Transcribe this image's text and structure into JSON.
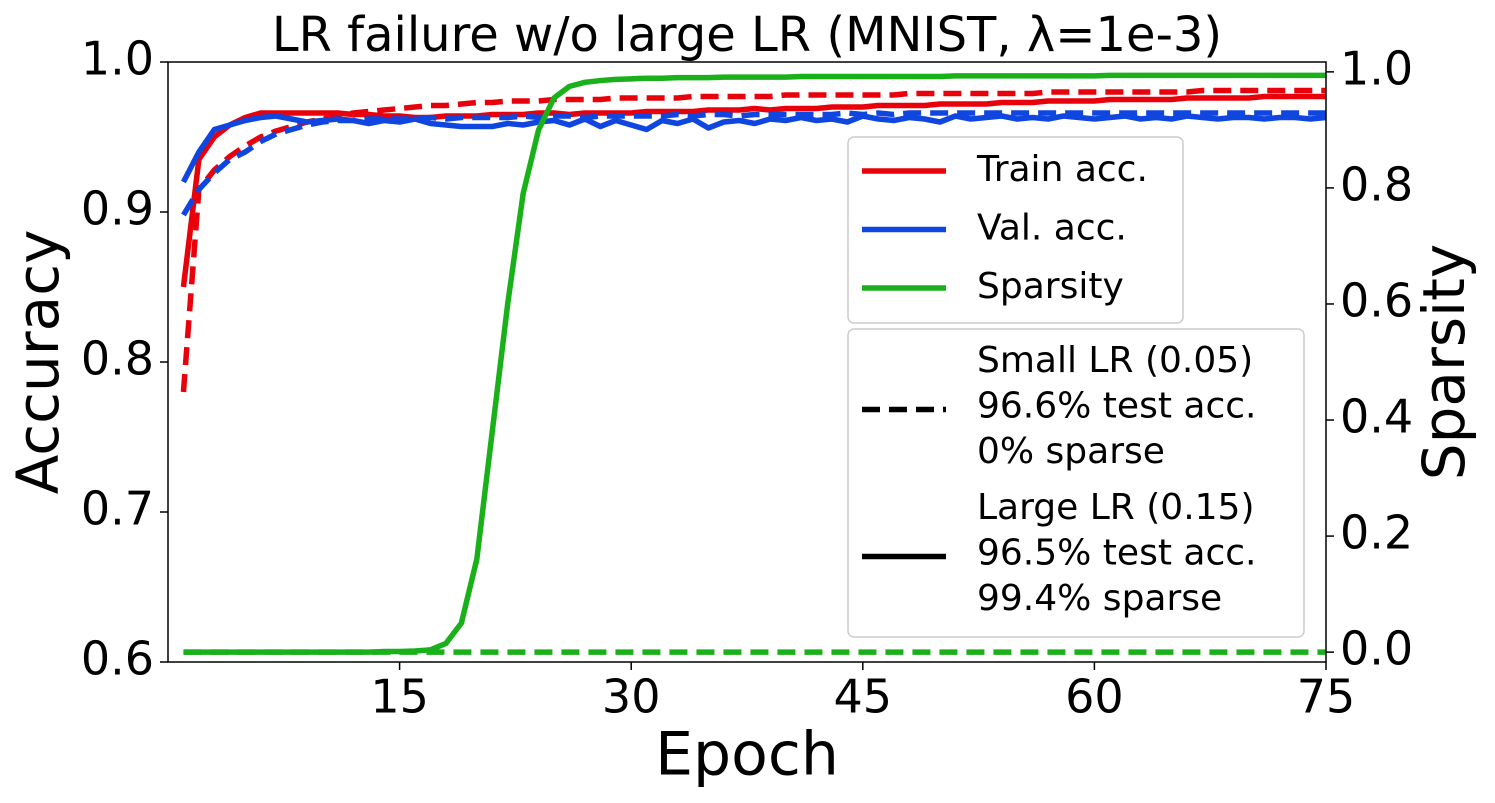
{
  "chart_data": {
    "type": "line",
    "title": "LR failure w/o large LR (MNIST, λ=1e-3)",
    "xlabel": "Epoch",
    "ylabel": "Accuracy",
    "y2label": "Sparsity",
    "x": [
      1,
      2,
      3,
      4,
      5,
      6,
      7,
      8,
      9,
      10,
      11,
      12,
      13,
      14,
      15,
      16,
      17,
      18,
      19,
      20,
      21,
      22,
      23,
      24,
      25,
      26,
      27,
      28,
      29,
      30,
      31,
      32,
      33,
      34,
      35,
      36,
      37,
      38,
      39,
      40,
      41,
      42,
      43,
      44,
      45,
      46,
      47,
      48,
      49,
      50,
      51,
      52,
      53,
      54,
      55,
      56,
      57,
      58,
      59,
      60,
      61,
      62,
      63,
      64,
      65,
      66,
      67,
      68,
      69,
      70,
      71,
      72,
      73,
      74,
      75
    ],
    "xlim": [
      0,
      75
    ],
    "xticks": [
      15,
      30,
      45,
      60,
      75
    ],
    "ylim": [
      0.6,
      1
    ],
    "yticks": [
      0.6,
      0.7,
      0.8,
      0.9,
      {
        "value": 1,
        "label": "1.0"
      }
    ],
    "y2lim": [
      -0.017,
      1.017
    ],
    "y2ticks": [
      {
        "value": 0,
        "label": "0.0"
      },
      0.2,
      0.4,
      0.6,
      0.8,
      {
        "value": 1,
        "label": "1.0"
      }
    ],
    "series": [
      {
        "name": "Train acc.",
        "color": "#e8000b",
        "dashed": true,
        "values": [
          0.78,
          0.915,
          0.928,
          0.937,
          0.944,
          0.95,
          0.954,
          0.957,
          0.96,
          0.962,
          0.964,
          0.966,
          0.967,
          0.968,
          0.969,
          0.97,
          0.971,
          0.971,
          0.972,
          0.973,
          0.973,
          0.974,
          0.974,
          0.974,
          0.975,
          0.975,
          0.975,
          0.975,
          0.976,
          0.976,
          0.976,
          0.976,
          0.976,
          0.977,
          0.977,
          0.977,
          0.977,
          0.977,
          0.977,
          0.978,
          0.978,
          0.978,
          0.978,
          0.978,
          0.978,
          0.978,
          0.978,
          0.979,
          0.979,
          0.979,
          0.979,
          0.979,
          0.979,
          0.979,
          0.979,
          0.979,
          0.98,
          0.98,
          0.98,
          0.98,
          0.98,
          0.98,
          0.98,
          0.98,
          0.98,
          0.98,
          0.981,
          0.981,
          0.981,
          0.981,
          0.981,
          0.981,
          0.981,
          0.981,
          0.981
        ]
      },
      {
        "name": "Train acc.",
        "color": "#e8000b",
        "dashed": false,
        "values": [
          0.85,
          0.935,
          0.95,
          0.958,
          0.963,
          0.966,
          0.966,
          0.966,
          0.966,
          0.966,
          0.966,
          0.965,
          0.965,
          0.964,
          0.964,
          0.963,
          0.963,
          0.964,
          0.964,
          0.964,
          0.965,
          0.965,
          0.965,
          0.966,
          0.966,
          0.965,
          0.966,
          0.966,
          0.966,
          0.966,
          0.967,
          0.967,
          0.967,
          0.967,
          0.968,
          0.968,
          0.968,
          0.969,
          0.968,
          0.969,
          0.969,
          0.969,
          0.97,
          0.97,
          0.97,
          0.971,
          0.971,
          0.971,
          0.971,
          0.972,
          0.972,
          0.972,
          0.972,
          0.973,
          0.973,
          0.973,
          0.974,
          0.974,
          0.974,
          0.974,
          0.975,
          0.975,
          0.975,
          0.975,
          0.975,
          0.976,
          0.976,
          0.976,
          0.976,
          0.976,
          0.977,
          0.977,
          0.977,
          0.977,
          0.977
        ]
      },
      {
        "name": "Val. acc.",
        "color": "#1046e0",
        "dashed": true,
        "values": [
          0.898,
          0.915,
          0.926,
          0.935,
          0.94,
          0.947,
          0.952,
          0.955,
          0.958,
          0.96,
          0.961,
          0.961,
          0.962,
          0.962,
          0.962,
          0.962,
          0.963,
          0.962,
          0.963,
          0.963,
          0.963,
          0.963,
          0.964,
          0.963,
          0.964,
          0.964,
          0.963,
          0.964,
          0.964,
          0.964,
          0.964,
          0.964,
          0.965,
          0.964,
          0.965,
          0.965,
          0.964,
          0.965,
          0.965,
          0.965,
          0.965,
          0.965,
          0.965,
          0.966,
          0.965,
          0.966,
          0.965,
          0.966,
          0.966,
          0.966,
          0.966,
          0.966,
          0.966,
          0.966,
          0.966,
          0.966,
          0.966,
          0.966,
          0.966,
          0.966,
          0.966,
          0.966,
          0.966,
          0.966,
          0.966,
          0.966,
          0.966,
          0.966,
          0.966,
          0.966,
          0.966,
          0.966,
          0.966,
          0.966,
          0.966
        ]
      },
      {
        "name": "Val. acc.",
        "color": "#1046e0",
        "dashed": false,
        "values": [
          0.92,
          0.94,
          0.955,
          0.958,
          0.961,
          0.963,
          0.964,
          0.962,
          0.96,
          0.961,
          0.962,
          0.961,
          0.959,
          0.961,
          0.96,
          0.962,
          0.959,
          0.958,
          0.957,
          0.957,
          0.957,
          0.959,
          0.958,
          0.96,
          0.961,
          0.958,
          0.962,
          0.957,
          0.961,
          0.958,
          0.955,
          0.961,
          0.959,
          0.962,
          0.956,
          0.96,
          0.961,
          0.959,
          0.962,
          0.961,
          0.963,
          0.961,
          0.962,
          0.96,
          0.964,
          0.962,
          0.961,
          0.963,
          0.962,
          0.96,
          0.964,
          0.962,
          0.963,
          0.964,
          0.962,
          0.963,
          0.962,
          0.964,
          0.963,
          0.962,
          0.963,
          0.964,
          0.962,
          0.963,
          0.962,
          0.964,
          0.963,
          0.962,
          0.963,
          0.963,
          0.962,
          0.963,
          0.963,
          0.962,
          0.963
        ]
      },
      {
        "name": "Sparsity",
        "color": "#1ab01a",
        "dashed": true,
        "axis": "y2",
        "values": [
          0,
          0,
          0,
          0,
          0,
          0,
          0,
          0,
          0,
          0,
          0,
          0,
          0,
          0,
          0,
          0,
          0,
          0,
          0,
          0,
          0,
          0,
          0,
          0,
          0,
          0,
          0,
          0,
          0,
          0,
          0,
          0,
          0,
          0,
          0,
          0,
          0,
          0,
          0,
          0,
          0,
          0,
          0,
          0,
          0,
          0,
          0,
          0,
          0,
          0,
          0,
          0,
          0,
          0,
          0,
          0,
          0,
          0,
          0,
          0,
          0,
          0,
          0,
          0,
          0,
          0,
          0,
          0,
          0,
          0,
          0,
          0,
          0,
          0,
          0
        ]
      },
      {
        "name": "Sparsity",
        "color": "#1ab01a",
        "dashed": false,
        "axis": "y2",
        "values": [
          0,
          0,
          0,
          0,
          0,
          0,
          0,
          0,
          0,
          0,
          0,
          0,
          0,
          0.001,
          0.001,
          0.002,
          0.004,
          0.015,
          0.05,
          0.16,
          0.38,
          0.6,
          0.79,
          0.9,
          0.955,
          0.975,
          0.982,
          0.985,
          0.987,
          0.988,
          0.989,
          0.989,
          0.99,
          0.99,
          0.99,
          0.991,
          0.991,
          0.991,
          0.991,
          0.991,
          0.992,
          0.992,
          0.992,
          0.992,
          0.992,
          0.992,
          0.992,
          0.992,
          0.992,
          0.992,
          0.993,
          0.993,
          0.993,
          0.993,
          0.993,
          0.993,
          0.993,
          0.993,
          0.993,
          0.993,
          0.994,
          0.994,
          0.994,
          0.994,
          0.994,
          0.994,
          0.994,
          0.994,
          0.994,
          0.994,
          0.994,
          0.994,
          0.994,
          0.994,
          0.994
        ]
      }
    ],
    "line_styles": [
      {
        "label": [
          "Small LR (0.05)",
          "96.6% test acc.",
          "0% sparse"
        ],
        "dashed": true
      },
      {
        "label": [
          "Large LR (0.15)",
          "96.5% test acc.",
          "99.4% sparse"
        ],
        "dashed": false
      }
    ]
  }
}
